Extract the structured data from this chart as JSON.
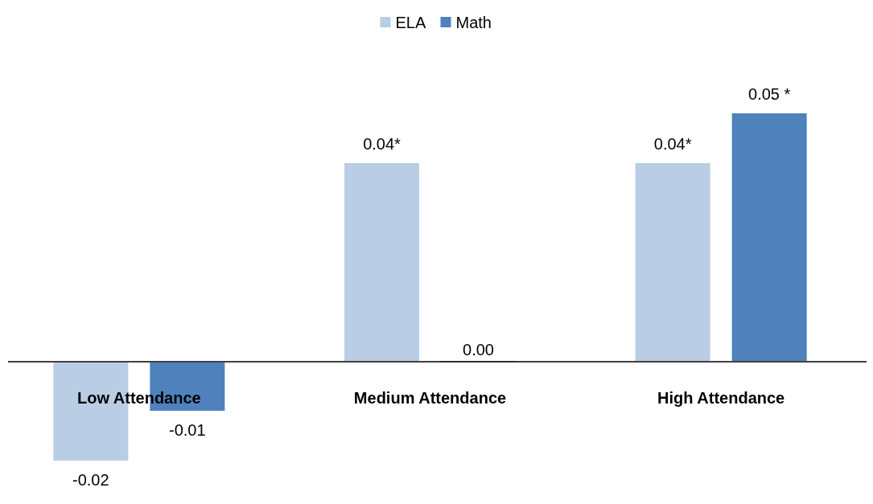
{
  "chart_data": {
    "type": "bar",
    "categories": [
      "Low Attendance",
      "Medium Attendance",
      "High Attendance"
    ],
    "series": [
      {
        "name": "ELA",
        "color": "#b9cde5",
        "values": [
          -0.02,
          0.04,
          0.04
        ],
        "value_labels": [
          "-0.02",
          "0.04*",
          "0.04*"
        ]
      },
      {
        "name": "Math",
        "color": "#4f81bd",
        "values": [
          -0.01,
          0.0,
          0.05
        ],
        "value_labels": [
          "-0.01",
          "0.00",
          "0.05 *"
        ]
      }
    ],
    "legend": "top"
  }
}
